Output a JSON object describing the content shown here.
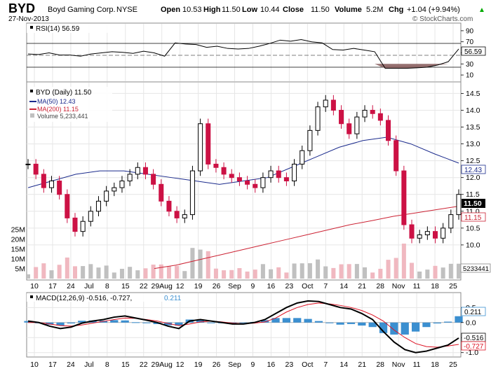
{
  "header": {
    "ticker": "BYD",
    "company": "Boyd Gaming Corp.",
    "exchange": "NYSE",
    "date": "27-Nov-2013",
    "open_label": "Open",
    "open": "10.53",
    "high_label": "High",
    "high": "11.50",
    "low_label": "Low",
    "low": "10.44",
    "close_label": "Close",
    "close": "11.50",
    "volume_label": "Volume",
    "volume": "5.2M",
    "chg_label": "Chg",
    "chg": "+1.04 (+9.94%)",
    "watermark": "© StockCharts.com",
    "up_arrow": "▲"
  },
  "rsi_legend": "RSI(14) 56.59",
  "rsi_value_label": "56.59",
  "price_legend": {
    "title": "BYD (Daily) 11.50",
    "ma50": "MA(50) 12.43",
    "ma200": "MA(200) 11.15",
    "volume": "Volume 5,233,441"
  },
  "price_tags": {
    "close": "11.50",
    "ma50": "12.43",
    "ma200": "11.15",
    "volume": "5233441"
  },
  "macd_legend": {
    "main": "MACD(12,26,9) -0.516, -0.727,",
    "hist": "0.211"
  },
  "macd_tags": {
    "hist": "0.211",
    "macd": "-0.516",
    "signal": "-0.727"
  },
  "colors": {
    "up": "#000000",
    "down": "#cc1144",
    "ma50": "#1a2a8c",
    "ma200": "#cc2233",
    "vol_up": "#c0c0c0",
    "vol_down": "#f0b8c0",
    "hist": "#3b8fd0",
    "rsi_low_fill": "#8b6060",
    "grid": "#e6e6e6"
  },
  "x_tick_labels": [
    "10",
    "17",
    "24",
    "Jul",
    "8",
    "15",
    "22",
    "29Aug",
    "12",
    "19",
    "26",
    "Sep",
    "9",
    "16",
    "23",
    "Oct",
    "7",
    "14",
    "21",
    "28",
    "Nov",
    "11",
    "18",
    "25"
  ],
  "chart_data": [
    {
      "type": "line",
      "title": "RSI(14) 56.59",
      "ylim": [
        0,
        100
      ],
      "y_ticks": [
        90,
        70,
        50,
        30,
        10
      ],
      "reference_lines": [
        70,
        30
      ],
      "x_axis": [
        "10",
        "17",
        "24",
        "Jul",
        "8",
        "15",
        "22",
        "29Aug",
        "12",
        "19",
        "26",
        "Sep",
        "9",
        "16",
        "23",
        "Oct",
        "7",
        "14",
        "21",
        "28",
        "Nov",
        "11",
        "18",
        "25"
      ],
      "series": [
        {
          "name": "RSI(14)",
          "values": [
            48,
            47,
            50,
            46,
            46,
            44,
            48,
            50,
            52,
            51,
            49,
            53,
            50,
            44,
            68,
            66,
            65,
            60,
            62,
            58,
            57,
            58,
            62,
            67,
            73,
            71,
            74,
            70,
            68,
            56,
            55,
            58,
            55,
            52,
            22,
            22,
            22,
            23,
            24,
            28,
            34,
            57
          ]
        }
      ]
    },
    {
      "type": "line",
      "title": "BYD (Daily) 11.50",
      "ylim": [
        9.0,
        14.8
      ],
      "y_ticks": [
        14.5,
        14.0,
        13.5,
        13.0,
        12.5,
        12.0,
        11.5,
        11.0,
        10.5,
        10.0
      ],
      "x_axis": [
        "10",
        "17",
        "24",
        "Jul",
        "8",
        "15",
        "22",
        "29Aug",
        "12",
        "19",
        "26",
        "Sep",
        "9",
        "16",
        "23",
        "Oct",
        "7",
        "14",
        "21",
        "28",
        "Nov",
        "11",
        "18",
        "25"
      ],
      "series": [
        {
          "name": "BYD Close",
          "values": [
            12.4,
            12.1,
            11.7,
            11.9,
            11.5,
            10.8,
            10.4,
            10.7,
            11.0,
            11.3,
            11.6,
            11.7,
            11.9,
            12.1,
            12.3,
            12.1,
            11.8,
            11.3,
            11.0,
            10.8,
            10.9,
            12.2,
            13.6,
            12.4,
            12.3,
            12.1,
            12.0,
            11.9,
            11.8,
            11.7,
            12.0,
            12.2,
            12.0,
            11.9,
            12.4,
            12.8,
            13.4,
            14.1,
            14.3,
            14.0,
            13.6,
            13.3,
            13.8,
            14.0,
            13.9,
            13.7,
            13.1,
            12.2,
            10.6,
            10.2,
            10.3,
            10.4,
            10.2,
            10.5,
            10.9,
            11.5
          ]
        },
        {
          "name": "MA(50)",
          "values": [
            11.7,
            11.9,
            12.1,
            12.2,
            12.2,
            12.1,
            12.0,
            11.9,
            11.8,
            11.9,
            12.0,
            12.3,
            12.6,
            12.9,
            13.1,
            13.2,
            13.0,
            12.7,
            12.43
          ]
        },
        {
          "name": "MA(200)",
          "values": [
            9.3,
            9.4,
            9.55,
            9.7,
            9.85,
            10.0,
            10.15,
            10.3,
            10.45,
            10.6,
            10.72,
            10.85,
            10.95,
            11.05,
            11.15
          ]
        }
      ],
      "volume_axis": {
        "label": "Volume",
        "ylim": [
          0,
          35000000
        ],
        "y_ticks": [
          "25M",
          "20M",
          "15M",
          "10M",
          "5M"
        ],
        "last": 5233441
      }
    },
    {
      "type": "line",
      "title": "MACD(12,26,9) -0.516, -0.727, 0.211",
      "ylim": [
        -1.1,
        0.95
      ],
      "y_ticks": [
        0.5,
        0.0,
        -0.5,
        -1.0
      ],
      "x_axis": [
        "10",
        "17",
        "24",
        "Jul",
        "8",
        "15",
        "22",
        "29Aug",
        "12",
        "19",
        "26",
        "Sep",
        "9",
        "16",
        "23",
        "Oct",
        "7",
        "14",
        "21",
        "28",
        "Nov",
        "11",
        "18",
        "25"
      ],
      "series": [
        {
          "name": "MACD(12,26,9)",
          "values": [
            0.05,
            0.0,
            -0.12,
            -0.2,
            -0.15,
            -0.02,
            0.05,
            0.1,
            0.18,
            0.22,
            0.15,
            0.08,
            0.0,
            -0.12,
            -0.2,
            0.05,
            0.1,
            0.05,
            0.0,
            -0.05,
            -0.05,
            0.0,
            0.1,
            0.3,
            0.5,
            0.65,
            0.72,
            0.7,
            0.6,
            0.5,
            0.45,
            0.3,
            0.1,
            -0.3,
            -0.65,
            -0.9,
            -1.0,
            -0.95,
            -0.85,
            -0.75,
            -0.516
          ]
        },
        {
          "name": "Signal",
          "values": [
            0.0,
            0.0,
            -0.05,
            -0.1,
            -0.12,
            -0.08,
            -0.02,
            0.04,
            0.1,
            0.15,
            0.14,
            0.1,
            0.05,
            -0.03,
            -0.1,
            -0.05,
            0.02,
            0.05,
            0.02,
            -0.02,
            -0.04,
            -0.02,
            0.02,
            0.15,
            0.35,
            0.5,
            0.6,
            0.65,
            0.62,
            0.57,
            0.5,
            0.4,
            0.25,
            0.05,
            -0.25,
            -0.5,
            -0.7,
            -0.8,
            -0.82,
            -0.78,
            -0.727
          ]
        },
        {
          "name": "Histogram",
          "values": [
            0.05,
            0.0,
            -0.07,
            -0.1,
            -0.03,
            0.06,
            0.07,
            0.06,
            0.08,
            0.07,
            0.01,
            -0.02,
            -0.05,
            -0.09,
            -0.1,
            0.1,
            0.08,
            0.0,
            -0.02,
            -0.03,
            -0.01,
            0.02,
            0.08,
            0.15,
            0.15,
            0.15,
            0.12,
            0.05,
            -0.02,
            -0.07,
            -0.05,
            -0.1,
            -0.15,
            -0.35,
            -0.4,
            -0.4,
            -0.3,
            -0.15,
            -0.03,
            0.03,
            0.211
          ]
        }
      ]
    }
  ]
}
